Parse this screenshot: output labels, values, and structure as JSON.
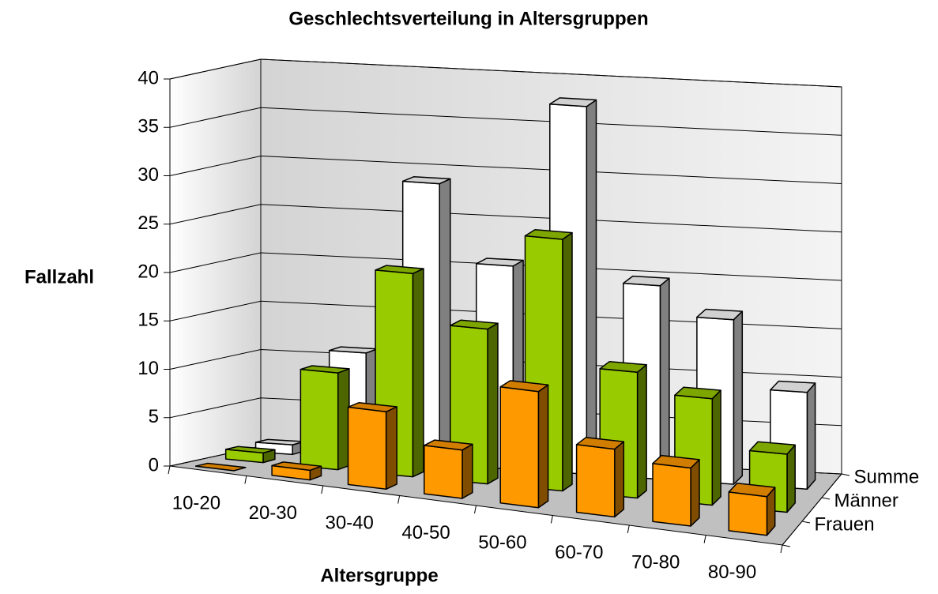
{
  "chart_data": {
    "type": "bar3d",
    "title": "Geschlechtsverteilung in Altersgruppen",
    "x_label": "Altersgruppe",
    "y_label": "Fallzahl",
    "categories": [
      "10-20",
      "20-30",
      "30-40",
      "40-50",
      "50-60",
      "60-70",
      "70-80",
      "80-90"
    ],
    "series": [
      {
        "name": "Frauen",
        "color": "#ff9900",
        "values": [
          0,
          1,
          8,
          5,
          12,
          7,
          6,
          4
        ]
      },
      {
        "name": "Männer",
        "color": "#99cc00",
        "values": [
          1,
          10,
          21,
          16,
          26,
          13,
          11,
          6
        ]
      },
      {
        "name": "Summe",
        "color": "#ffffff",
        "values": [
          1,
          11,
          29,
          21,
          38,
          20,
          17,
          10
        ]
      }
    ],
    "ylim": [
      0,
      40
    ],
    "yticks": [
      0,
      5,
      10,
      15,
      20,
      25,
      30,
      35,
      40
    ],
    "grid": true
  }
}
